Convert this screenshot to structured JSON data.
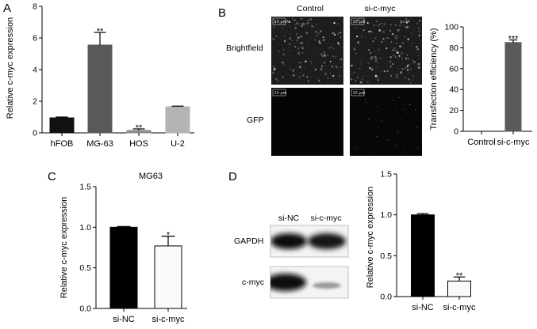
{
  "panels": {
    "A": {
      "letter": "A"
    },
    "B": {
      "letter": "B"
    },
    "C": {
      "letter": "C"
    },
    "D": {
      "letter": "D"
    }
  },
  "microscopy": {
    "columns": [
      "Control",
      "si-c-myc"
    ],
    "rows": [
      "Brightfield",
      "GFP"
    ],
    "scale_bar_label": "10 μm"
  },
  "western_blot": {
    "lanes": [
      "si-NC",
      "si-c-myc"
    ],
    "bands": [
      "GAPDH",
      "c-myc"
    ]
  },
  "chart_data": [
    {
      "id": "A",
      "type": "bar",
      "categories": [
        "hFOB",
        "MG-63",
        "HOS",
        "U-2"
      ],
      "values": [
        0.95,
        5.55,
        0.15,
        1.65
      ],
      "errors": [
        0.05,
        0.8,
        0.1,
        0.04
      ],
      "significance": [
        "",
        "**",
        "**",
        ""
      ],
      "colors": [
        "#111111",
        "#595959",
        "#8a8a8a",
        "#b4b4b4"
      ],
      "title": "",
      "xlabel": "",
      "ylabel": "Relative c-myc expression",
      "ylim": [
        0,
        8
      ],
      "yticks": [
        0,
        2,
        4,
        6,
        8
      ]
    },
    {
      "id": "B",
      "type": "bar",
      "categories": [
        "Control",
        "si-c-myc"
      ],
      "values": [
        0,
        85
      ],
      "errors": [
        0,
        2.5
      ],
      "significance": [
        "",
        "***"
      ],
      "colors": [
        "#111111",
        "#5a5a5a"
      ],
      "title": "",
      "xlabel": "",
      "ylabel": "Transfection efficiency (%)",
      "ylim": [
        0,
        100
      ],
      "yticks": [
        0,
        20,
        40,
        60,
        80,
        100
      ]
    },
    {
      "id": "C",
      "type": "bar",
      "categories": [
        "si-NC",
        "si-c-myc"
      ],
      "values": [
        1.0,
        0.77
      ],
      "errors": [
        0.01,
        0.12
      ],
      "significance": [
        "",
        "*"
      ],
      "colors": [
        "#000000",
        "#fafafa"
      ],
      "title": "MG63",
      "xlabel": "",
      "ylabel": "Relative c-myc expression",
      "ylim": [
        0,
        1.5
      ],
      "yticks": [
        "0.0",
        "0.5",
        "1.0",
        "1.5"
      ]
    },
    {
      "id": "D",
      "type": "bar",
      "categories": [
        "si-NC",
        "si-c-myc"
      ],
      "values": [
        1.0,
        0.19
      ],
      "errors": [
        0.015,
        0.05
      ],
      "significance": [
        "",
        "**"
      ],
      "colors": [
        "#000000",
        "#fafafa"
      ],
      "title": "",
      "xlabel": "",
      "ylabel": "Relative c-myc expression",
      "ylim": [
        0,
        1.5
      ],
      "yticks": [
        "0.0",
        "0.5",
        "1.0",
        "1.5"
      ]
    }
  ]
}
